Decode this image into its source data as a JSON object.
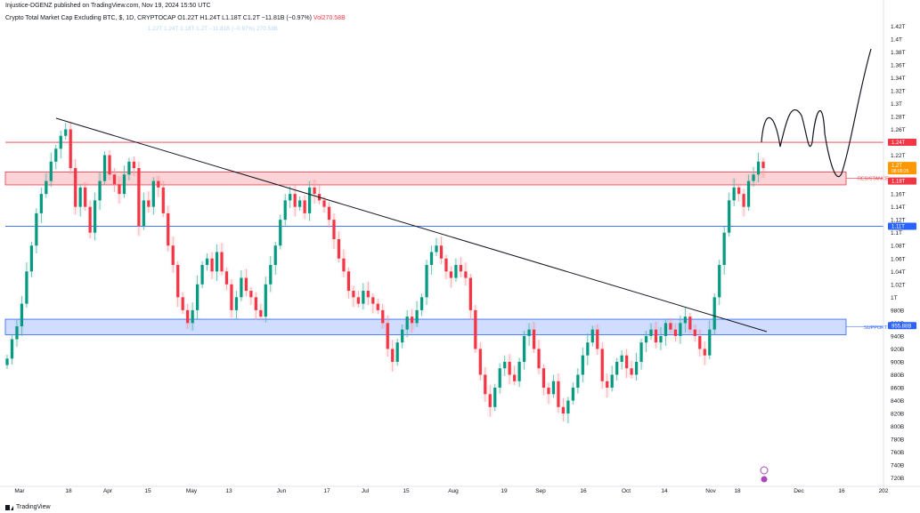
{
  "header": {
    "published": "Injustice-DGENZ published on TradingView.com, Nov 19, 2024 15:50 UTC"
  },
  "legend": {
    "symbol": "Crypto Total Market Cap Excluding BTC, $, 1D, CRYPTOCAP",
    "ohlc": "O1.22T H1.24T L1.18T C1.2T −11.81B (−0.97%)",
    "vol": "Vol270.58B",
    "secondary": "1.22T 1.24T 1.18T 1.2T −11.81B (−0.97%) 270.58B"
  },
  "footer": {
    "brand": "TradingView"
  },
  "chart_data": {
    "type": "candlestick",
    "y_ticks": [
      "1.42T",
      "1.4T",
      "1.38T",
      "1.36T",
      "1.34T",
      "1.32T",
      "1.3T",
      "1.28T",
      "1.26T",
      "1.24T",
      "1.22T",
      "1.2T",
      "1.18T",
      "1.16T",
      "1.14T",
      "1.12T",
      "1.1T",
      "1.08T",
      "1.06T",
      "1.04T",
      "1.02T",
      "1T",
      "980B",
      "960B",
      "940B",
      "920B",
      "900B",
      "880B",
      "860B",
      "840B",
      "820B",
      "800B",
      "780B",
      "760B",
      "740B",
      "720B"
    ],
    "x_ticks": [
      "Mar",
      "18",
      "Apr",
      "15",
      "May",
      "13",
      "Jun",
      "17",
      "Jul",
      "15",
      "Aug",
      "19",
      "Sep",
      "16",
      "Oct",
      "14",
      "Nov",
      "18",
      "Dec",
      "16",
      "202"
    ],
    "ylim": [
      710,
      1430
    ],
    "price_tags": {
      "resistance_line": {
        "label": "1.24T",
        "value": 1240,
        "color": "#f23645"
      },
      "current": {
        "label": "1.2T",
        "value": 1200,
        "countdown": "08:09:25",
        "color": "#ff9800"
      },
      "resistance_zone": {
        "label": "1.18T",
        "value": 1180,
        "color": "#f23645"
      },
      "blue_line": {
        "label": "1.11T",
        "value": 1110,
        "color": "#2962ff"
      },
      "support": {
        "label": "955.88B",
        "value": 956,
        "color": "#2962ff"
      }
    },
    "zones": [
      {
        "name": "RESISTANCE",
        "label": "RESISTANCE",
        "low": 1174,
        "high": 1194,
        "color": "#f23645"
      },
      {
        "name": "SUPPORT",
        "label": "SUPPORT",
        "low": 942,
        "high": 966,
        "color": "#2962ff"
      }
    ],
    "lines": [
      {
        "name": "resistance-line",
        "value": 1240,
        "color": "#f23645"
      },
      {
        "name": "blue-level-line",
        "value": 1110,
        "color": "#2962ff"
      }
    ],
    "close": [
      905,
      935,
      955,
      990,
      1040,
      1080,
      1130,
      1160,
      1180,
      1210,
      1230,
      1250,
      1260,
      1200,
      1140,
      1170,
      1140,
      1100,
      1150,
      1180,
      1220,
      1190,
      1175,
      1160,
      1190,
      1210,
      1200,
      1110,
      1150,
      1140,
      1180,
      1170,
      1130,
      1080,
      1050,
      1000,
      980,
      960,
      980,
      1020,
      1050,
      1060,
      1040,
      1070,
      1040,
      1020,
      980,
      1000,
      1030,
      1010,
      1000,
      980,
      970,
      1020,
      1050,
      1080,
      1120,
      1150,
      1160,
      1140,
      1150,
      1130,
      1170,
      1160,
      1150,
      1140,
      1120,
      1090,
      1060,
      1040,
      1010,
      1000,
      990,
      1010,
      1000,
      990,
      980,
      960,
      920,
      900,
      930,
      950,
      970,
      960,
      980,
      1000,
      1050,
      1070,
      1080,
      1060,
      1040,
      1030,
      1050,
      1040,
      1030,
      980,
      920,
      880,
      850,
      830,
      860,
      890,
      900,
      880,
      870,
      900,
      940,
      950,
      920,
      890,
      860,
      850,
      870,
      830,
      820,
      840,
      860,
      880,
      910,
      930,
      950,
      920,
      870,
      860,
      880,
      900,
      910,
      890,
      880,
      900,
      930,
      940,
      950,
      930,
      940,
      960,
      950,
      940,
      960,
      970,
      950,
      940,
      920,
      910,
      950,
      1000,
      1050,
      1100,
      1150,
      1170,
      1160,
      1140,
      1180,
      1190,
      1210,
      1200
    ]
  }
}
